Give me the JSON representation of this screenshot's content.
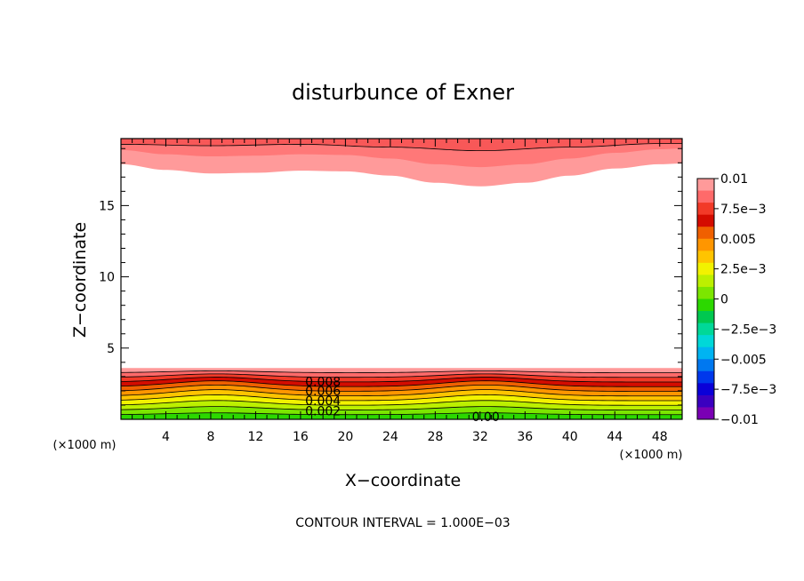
{
  "chart_data": {
    "type": "contour",
    "title": "disturbunce of Exner",
    "xlabel": "X−coordinate",
    "ylabel": "Z−coordinate",
    "x_unit_label": "(×1000 m)",
    "footer": "CONTOUR INTERVAL = 1.000E−03",
    "xlim": [
      0,
      50
    ],
    "ylim": [
      0,
      19.7
    ],
    "x_ticks": [
      4,
      8,
      12,
      16,
      20,
      24,
      28,
      32,
      36,
      40,
      44,
      48
    ],
    "x_tick_labels": [
      "4",
      "8",
      "12",
      "16",
      "20",
      "24",
      "28",
      "32",
      "36",
      "40",
      "44",
      "48"
    ],
    "y_ticks": [
      5,
      10,
      15
    ],
    "y_tick_labels": [
      "5",
      "10",
      "15"
    ],
    "contour_interval": 0.001,
    "contour_labels": [
      {
        "text": "0.008",
        "x": 18,
        "y": 2.65
      },
      {
        "text": "0.006",
        "x": 18,
        "y": 2.0
      },
      {
        "text": "0.004",
        "x": 18,
        "y": 1.3
      },
      {
        "text": "0.002",
        "x": 18,
        "y": 0.6
      },
      {
        "text": "0.00",
        "x": 32.5,
        "y": 0.2
      }
    ],
    "colorbar": {
      "min": -0.01,
      "max": 0.01,
      "tick_labels": [
        "0.01",
        "7.5e−3",
        "0.005",
        "2.5e−3",
        "0",
        "−2.5e−3",
        "−0.005",
        "−7.5e−3",
        "−0.01"
      ],
      "colors": [
        "#ff9a9a",
        "#ff6a6a",
        "#f23a28",
        "#d40c00",
        "#f06000",
        "#ff9600",
        "#ffc400",
        "#f2f200",
        "#bcf000",
        "#7ce600",
        "#2cd800",
        "#00c850",
        "#00d898",
        "#00d8d8",
        "#00b4f2",
        "#0078f0",
        "#0038ec",
        "#0a00d8",
        "#3a00c0",
        "#7a00b4"
      ]
    },
    "surface_layer": {
      "top_z": 3.6,
      "bump_amplitude": 0.45,
      "bump_centers_x": [
        8.5,
        32.5
      ],
      "bump_width_x": 5.5,
      "bands_bottom_to_top": [
        {
          "from": -0.0005,
          "to": 0.0,
          "color": "#2cd800"
        },
        {
          "from": 0.0,
          "to": 0.0005,
          "color": "#7ce600"
        },
        {
          "from": 0.0005,
          "to": 0.001,
          "color": "#bcf000"
        },
        {
          "from": 0.001,
          "to": 0.0015,
          "color": "#f2f200"
        },
        {
          "from": 0.0015,
          "to": 0.002,
          "color": "#ffc400"
        },
        {
          "from": 0.002,
          "to": 0.0025,
          "color": "#ff9600"
        },
        {
          "from": 0.0025,
          "to": 0.003,
          "color": "#f06000"
        },
        {
          "from": 0.003,
          "to": 0.0035,
          "color": "#d40c00"
        },
        {
          "from": 0.0035,
          "to": 0.004,
          "color": "#f23a28"
        },
        {
          "from": 0.004,
          "to": 0.0045,
          "color": "#ff6a6a"
        },
        {
          "from": 0.0045,
          "to": 0.005,
          "color": "#ff9a9a"
        }
      ]
    },
    "upper_layer": {
      "bottom_z_profile": [
        {
          "x": 0,
          "z": 17.9
        },
        {
          "x": 4,
          "z": 17.5
        },
        {
          "x": 8,
          "z": 17.25
        },
        {
          "x": 12,
          "z": 17.3
        },
        {
          "x": 16,
          "z": 17.45
        },
        {
          "x": 20,
          "z": 17.4
        },
        {
          "x": 24,
          "z": 17.1
        },
        {
          "x": 28,
          "z": 16.6
        },
        {
          "x": 32,
          "z": 16.35
        },
        {
          "x": 36,
          "z": 16.6
        },
        {
          "x": 40,
          "z": 17.1
        },
        {
          "x": 44,
          "z": 17.6
        },
        {
          "x": 48,
          "z": 17.9
        },
        {
          "x": 50,
          "z": 17.95
        }
      ],
      "mid_z_profile": [
        {
          "x": 0,
          "z": 18.9
        },
        {
          "x": 4,
          "z": 18.6
        },
        {
          "x": 8,
          "z": 18.45
        },
        {
          "x": 12,
          "z": 18.5
        },
        {
          "x": 16,
          "z": 18.6
        },
        {
          "x": 20,
          "z": 18.55
        },
        {
          "x": 24,
          "z": 18.3
        },
        {
          "x": 28,
          "z": 17.9
        },
        {
          "x": 32,
          "z": 17.7
        },
        {
          "x": 36,
          "z": 17.9
        },
        {
          "x": 40,
          "z": 18.3
        },
        {
          "x": 44,
          "z": 18.7
        },
        {
          "x": 48,
          "z": 18.95
        },
        {
          "x": 50,
          "z": 19.0
        }
      ],
      "top_line_profile": [
        {
          "x": 0,
          "z": 19.3
        },
        {
          "x": 8,
          "z": 19.2
        },
        {
          "x": 16,
          "z": 19.3
        },
        {
          "x": 24,
          "z": 19.1
        },
        {
          "x": 32,
          "z": 18.85
        },
        {
          "x": 40,
          "z": 19.1
        },
        {
          "x": 48,
          "z": 19.35
        },
        {
          "x": 50,
          "z": 19.35
        }
      ],
      "colors": [
        "#ff9a9a",
        "#ff7878",
        "#f85858"
      ]
    }
  }
}
